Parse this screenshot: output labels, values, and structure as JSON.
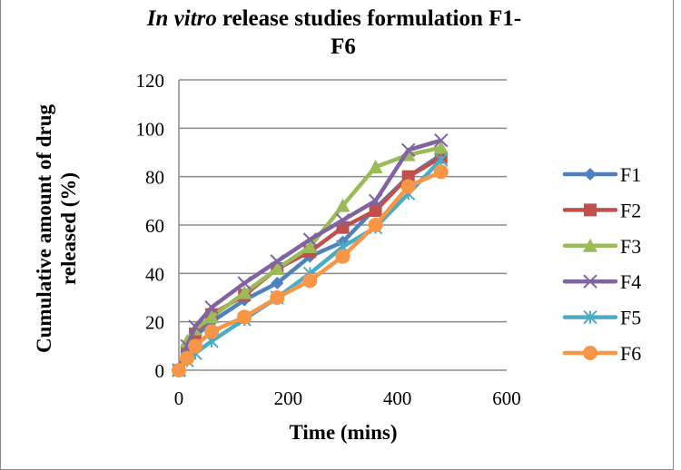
{
  "chart_data": {
    "type": "line",
    "title_italic": "In vitro",
    "title_rest": "release studies formulation F1-",
    "title_line2": "F6",
    "xlabel": "Time (mins)",
    "ylabel_line1": "Cumulative amount of drug",
    "ylabel_line2": "released (%)",
    "xlim": [
      0,
      600
    ],
    "ylim": [
      0,
      120
    ],
    "xticks": [
      0,
      200,
      400,
      600
    ],
    "yticks": [
      0,
      20,
      40,
      60,
      80,
      100,
      120
    ],
    "grid": "horizontal",
    "legend": "right",
    "x": [
      0,
      15,
      30,
      60,
      120,
      180,
      240,
      300,
      360,
      420,
      480
    ],
    "series": [
      {
        "name": "F1",
        "color": "#4f81bd",
        "marker": "diamond",
        "values": [
          0,
          7,
          14,
          20,
          29,
          36,
          47,
          53,
          67,
          80,
          89
        ]
      },
      {
        "name": "F2",
        "color": "#c0504d",
        "marker": "square",
        "values": [
          0,
          8,
          15,
          23,
          31,
          42,
          49,
          59,
          66,
          80,
          88
        ]
      },
      {
        "name": "F3",
        "color": "#9bbb59",
        "marker": "triangle",
        "values": [
          0,
          12,
          17,
          22,
          32,
          42,
          51,
          68,
          84,
          89,
          92
        ]
      },
      {
        "name": "F4",
        "color": "#8064a2",
        "marker": "x",
        "values": [
          0,
          10,
          18,
          26,
          36,
          45,
          54,
          62,
          70,
          91,
          95
        ]
      },
      {
        "name": "F5",
        "color": "#4bacc6",
        "marker": "star",
        "values": [
          0,
          4,
          7,
          12,
          21,
          30,
          40,
          51,
          59,
          73,
          87
        ]
      },
      {
        "name": "F6",
        "color": "#f79646",
        "marker": "circle",
        "values": [
          0,
          5,
          10,
          16,
          22,
          30,
          37,
          47,
          60,
          76,
          82
        ]
      }
    ]
  }
}
